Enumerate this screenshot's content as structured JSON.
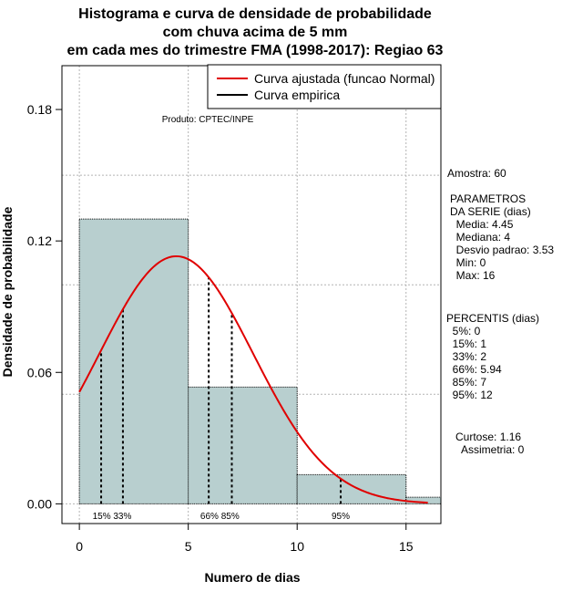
{
  "chart_data": {
    "type": "bar",
    "title_lines": [
      "Histograma e curva de densidade de probabilidade",
      "com chuva acima de 5 mm",
      "em cada mes do trimestre FMA (1998-2017): Regiao 63"
    ],
    "xlabel": "Numero de dias",
    "ylabel": "Densidade de probabilidade",
    "xlim": [
      -0.8,
      16.6
    ],
    "ylim": [
      -0.009,
      0.2
    ],
    "x_ticks": [
      0,
      5,
      10,
      15
    ],
    "y_ticks": [
      0.0,
      0.06,
      0.12,
      0.18
    ],
    "y_tick_labels": [
      "0.00",
      "0.06",
      "0.12",
      "0.18"
    ],
    "grid_x": [
      0,
      5,
      10,
      15
    ],
    "grid_y": [
      0.0,
      0.05,
      0.1,
      0.15,
      0.2
    ],
    "bins": [
      {
        "start": 0,
        "end": 5,
        "density": 0.13
      },
      {
        "start": 5,
        "end": 10,
        "density": 0.0533
      },
      {
        "start": 10,
        "end": 15,
        "density": 0.0133
      },
      {
        "start": 15,
        "end": 16.6,
        "density": 0.003
      }
    ],
    "normal_fit": {
      "mean": 4.45,
      "sd": 3.53,
      "x_range": [
        0,
        16
      ],
      "color": "#e00000"
    },
    "bar_fill": "#b8cfcf",
    "percentile_lines": [
      {
        "x": 1,
        "label": "15%"
      },
      {
        "x": 2,
        "label": "33%"
      },
      {
        "x": 5.94,
        "label": "66%"
      },
      {
        "x": 7,
        "label": "85%"
      },
      {
        "x": 12,
        "label": "95%"
      }
    ],
    "percentile_label_groups": [
      {
        "x": 1.5,
        "text": "15% 33%"
      },
      {
        "x": 6.45,
        "text": "66% 85%"
      },
      {
        "x": 12,
        "text": "95%"
      }
    ],
    "legend": {
      "position": "top-right",
      "entries": [
        {
          "label": "Curva ajustada (funcao Normal)",
          "color": "#e00000"
        },
        {
          "label": "Curva empirica",
          "color": "#000000"
        }
      ]
    },
    "annotation": "Produto: CPTEC/INPE"
  },
  "side_panel": {
    "amostra": "Amostra: 60",
    "parametros": "PARAMETROS\nDA SERIE (dias)\n  Media: 4.45\n  Mediana: 4\n  Desvio padrao: 3.53\n  Min: 0\n  Max: 16",
    "percentis": "PERCENTIS (dias)\n  5%: 0\n  15%: 1\n  33%: 2\n  66%: 5.94\n  85%: 7\n  95%: 12",
    "forma": "   Curtose: 1.16\n     Assimetria: 0"
  }
}
